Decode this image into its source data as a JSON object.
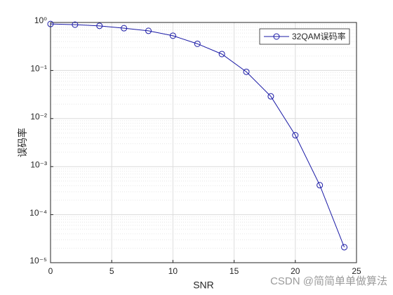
{
  "chart_data": {
    "type": "line",
    "xlabel": "SNR",
    "ylabel": "误码率",
    "x": [
      0,
      2,
      4,
      6,
      8,
      10,
      12,
      14,
      16,
      18,
      20,
      22,
      24
    ],
    "series": [
      {
        "name": "32QAM误码率",
        "color": "#1a1aa6",
        "marker": "circle",
        "values": [
          0.93,
          0.9,
          0.85,
          0.76,
          0.67,
          0.53,
          0.36,
          0.22,
          0.094,
          0.029,
          0.0045,
          0.00041,
          2.1e-05
        ]
      }
    ],
    "xlim": [
      0,
      25
    ],
    "xticks": [
      0,
      5,
      10,
      15,
      20,
      25
    ],
    "ylim": [
      1e-05,
      1
    ],
    "log_y": true,
    "yticks": [
      {
        "value": 1e-05,
        "label": "10⁻⁵"
      },
      {
        "value": 0.0001,
        "label": "10⁻⁴"
      },
      {
        "value": 0.001,
        "label": "10⁻³"
      },
      {
        "value": 0.01,
        "label": "10⁻²"
      },
      {
        "value": 0.1,
        "label": "10⁻¹"
      },
      {
        "value": 1,
        "label": "10⁰"
      }
    ],
    "grid": true,
    "minor_grid": true,
    "legend": "northeast",
    "watermark": "CSDN @简简单单做算法"
  }
}
